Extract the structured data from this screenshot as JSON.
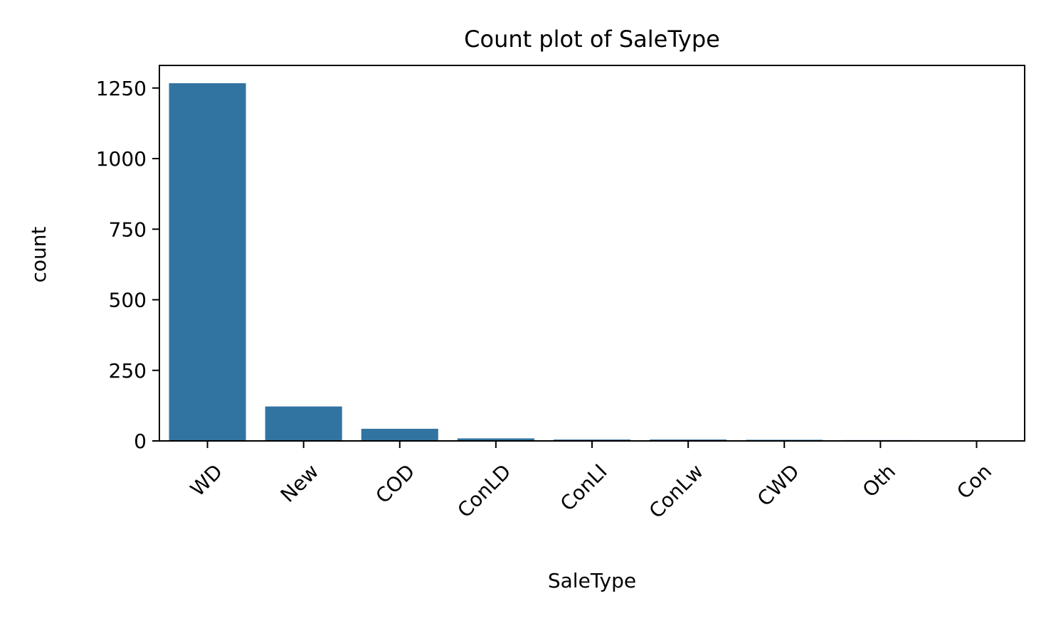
{
  "chart_data": {
    "type": "bar",
    "title": "Count plot of SaleType",
    "xlabel": "SaleType",
    "ylabel": "count",
    "categories": [
      "WD",
      "New",
      "COD",
      "ConLD",
      "ConLI",
      "ConLw",
      "CWD",
      "Oth",
      "Con"
    ],
    "values": [
      1267,
      122,
      43,
      9,
      5,
      5,
      4,
      3,
      2
    ],
    "ylim": [
      0,
      1330
    ],
    "yticks": [
      0,
      250,
      500,
      750,
      1000,
      1250
    ],
    "ytick_labels": [
      "0",
      "250",
      "500",
      "750",
      "1000",
      "1250"
    ],
    "grid": false,
    "legend": "none",
    "bar_color": "#3274a1"
  }
}
